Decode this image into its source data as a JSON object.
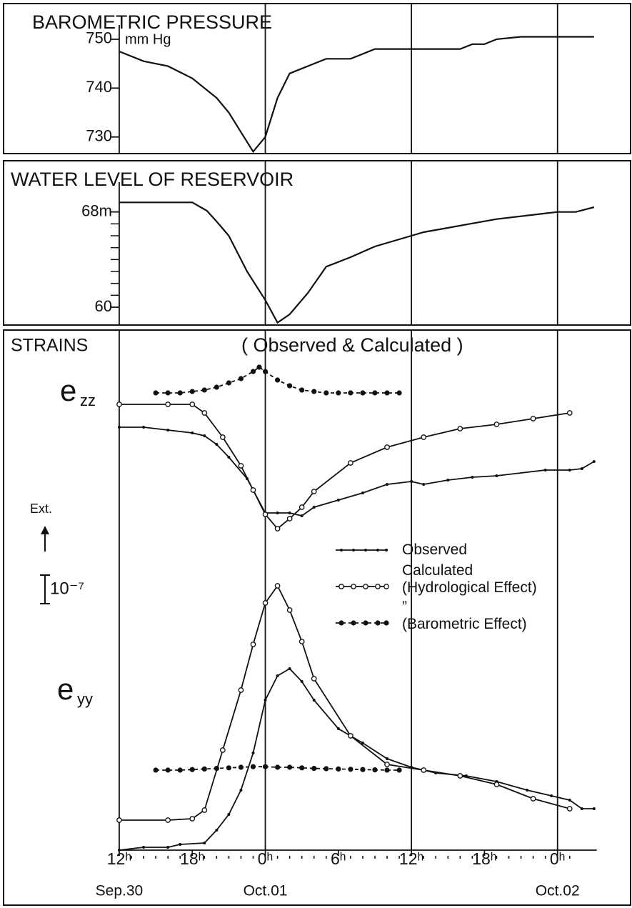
{
  "chart_data": [
    {
      "type": "line",
      "title": "BAROMETRIC PRESSURE",
      "unit": "mm Hg",
      "xlim": [
        -9.5,
        42
      ],
      "ylim": [
        726.6,
        757.3
      ],
      "yticks": [
        730,
        740,
        750
      ],
      "xgrid": [
        12,
        24,
        36
      ],
      "series": [
        {
          "color": "#111",
          "marker": "none",
          "x": [
            0,
            2,
            4,
            6,
            8,
            9,
            10,
            11,
            12,
            13,
            14,
            16,
            17,
            19,
            21,
            24,
            28,
            29,
            30,
            31,
            33,
            39
          ],
          "values": [
            747.5,
            745.5,
            744.5,
            742,
            738,
            735,
            731,
            727,
            730,
            738,
            743,
            745,
            746,
            746,
            748,
            748,
            748,
            749,
            749,
            750,
            750.5,
            750.5
          ]
        }
      ]
    },
    {
      "type": "line",
      "title": "WATER LEVEL OF RESERVOIR",
      "xlim": [
        -9.5,
        42
      ],
      "ylim": [
        58.5,
        72.3
      ],
      "yticks": [
        60,
        {
          "value": 68,
          "label": "68m"
        }
      ],
      "yminor": [
        61,
        62,
        63,
        64,
        65,
        66,
        67
      ],
      "xgrid": [
        12,
        24,
        36
      ],
      "series": [
        {
          "color": "#111",
          "marker": "none",
          "x": [
            0,
            6,
            7.2,
            8,
            9,
            10.5,
            12,
            13,
            14,
            15.5,
            17,
            19,
            21,
            24,
            25,
            31,
            36,
            37.5,
            39
          ],
          "values": [
            68.8,
            68.8,
            68.1,
            67.2,
            66,
            63,
            60.6,
            58.7,
            59.4,
            61.2,
            63.4,
            64.2,
            65.1,
            66,
            66.3,
            67.4,
            68,
            68,
            68.4
          ]
        }
      ]
    },
    {
      "type": "line",
      "title": "STRAINS",
      "subtitle": "( Observed & Calculated )",
      "annotations": [
        "Ext."
      ],
      "component_labels": [
        {
          "main": "e",
          "sub": "zz"
        },
        {
          "main": "e",
          "sub": "yy"
        }
      ],
      "scale_bar": {
        "value": 1,
        "label": "10⁻⁷"
      },
      "xlim": [
        -9.5,
        42
      ],
      "ylim": [
        0,
        18.2
      ],
      "xgrid": [
        0,
        12,
        24,
        36
      ],
      "xticks": [
        {
          "value": 0,
          "label": "12ʰ"
        },
        {
          "value": 6,
          "label": "18ʰ"
        },
        {
          "value": 12,
          "label": "0ʰ"
        },
        {
          "value": 18,
          "label": "6ʰ"
        },
        {
          "value": 24,
          "label": "12ʰ"
        },
        {
          "value": 30,
          "label": "18ʰ"
        },
        {
          "value": 36,
          "label": "0ʰ"
        }
      ],
      "xminor": [
        1,
        2,
        3,
        4,
        5,
        7,
        8,
        9,
        10,
        11,
        13,
        14,
        15,
        16,
        17,
        19,
        20,
        21,
        22,
        23,
        25,
        26,
        27,
        28,
        29,
        31,
        32,
        33,
        34,
        35,
        37
      ],
      "date_labels": [
        {
          "value": 0,
          "label": "Sep.30"
        },
        {
          "value": 12,
          "label": "Oct.01"
        },
        {
          "value": 36,
          "label": "Oct.02"
        }
      ],
      "series": [
        {
          "name": "Observed",
          "color": "#111",
          "marker": "dot",
          "x": [
            0,
            2,
            4,
            6,
            7,
            8,
            9,
            10.5,
            12,
            13,
            14,
            15,
            16,
            18,
            20,
            22,
            24,
            25,
            27,
            29,
            31,
            35,
            37,
            38,
            39
          ],
          "values": [
            14.8,
            14.8,
            14.7,
            14.6,
            14.5,
            14.2,
            13.75,
            13,
            11.8,
            11.8,
            11.8,
            11.7,
            12,
            12.25,
            12.5,
            12.8,
            12.9,
            12.8,
            12.95,
            13.05,
            13.1,
            13.3,
            13.3,
            13.35,
            13.6
          ]
        },
        {
          "name": "Calculated\n(Hydrological Effect)",
          "color": "#111",
          "marker": "circle",
          "x": [
            0,
            4,
            6,
            7,
            8.5,
            10,
            11,
            12,
            13,
            14,
            15,
            16,
            19,
            22,
            25,
            28,
            31,
            34,
            37
          ],
          "values": [
            15.6,
            15.6,
            15.6,
            15.3,
            14.45,
            13.45,
            12.6,
            11.75,
            11.25,
            11.6,
            12,
            12.55,
            13.55,
            14.1,
            14.45,
            14.75,
            14.9,
            15.1,
            15.3
          ]
        },
        {
          "name": "”\n(Barometric Effect)",
          "color": "#111",
          "marker": "filled",
          "dash": true,
          "x": [
            3,
            4,
            5,
            6,
            7,
            8,
            9,
            10,
            11,
            11.5,
            12,
            13,
            14,
            15,
            16,
            17,
            18,
            19,
            20,
            21,
            22,
            23
          ],
          "values": [
            16,
            16,
            16,
            16.05,
            16.1,
            16.2,
            16.35,
            16.5,
            16.75,
            16.9,
            16.75,
            16.45,
            16.25,
            16.1,
            16.05,
            16,
            16,
            16,
            16,
            16,
            16,
            16
          ]
        },
        {
          "color": "#111",
          "marker": "dot",
          "x": [
            0,
            2,
            4,
            5,
            7,
            8,
            9,
            10,
            11,
            12,
            13,
            14,
            15,
            16,
            18,
            20,
            22,
            24,
            26,
            28.5,
            31,
            33.5,
            35.5,
            37,
            38,
            39
          ],
          "values": [
            0,
            0.1,
            0.1,
            0.2,
            0.25,
            0.7,
            1.25,
            2.1,
            3.4,
            5.25,
            6.1,
            6.35,
            5.9,
            5.25,
            4.25,
            3.75,
            3.2,
            2.9,
            2.7,
            2.6,
            2.4,
            2.1,
            1.9,
            1.75,
            1.45,
            1.45
          ]
        },
        {
          "color": "#111",
          "marker": "circle",
          "x": [
            0,
            4,
            6,
            7,
            8.5,
            10,
            11,
            12,
            13,
            14,
            15,
            16,
            19,
            22,
            25,
            28,
            31,
            34,
            37
          ],
          "values": [
            1.05,
            1.05,
            1.1,
            1.4,
            3.5,
            5.6,
            7.2,
            8.65,
            9.25,
            8.4,
            7.3,
            6,
            4,
            3,
            2.8,
            2.6,
            2.3,
            1.8,
            1.45
          ]
        },
        {
          "color": "#111",
          "marker": "filled",
          "dash": true,
          "x": [
            3,
            4,
            5,
            6,
            7,
            8,
            9,
            10,
            11,
            12,
            13,
            14,
            15,
            16,
            17,
            18,
            19,
            20,
            21,
            22,
            23
          ],
          "values": [
            2.8,
            2.8,
            2.8,
            2.82,
            2.84,
            2.86,
            2.88,
            2.9,
            2.92,
            2.92,
            2.9,
            2.9,
            2.88,
            2.86,
            2.85,
            2.84,
            2.83,
            2.82,
            2.81,
            2.8,
            2.8
          ]
        }
      ]
    }
  ]
}
